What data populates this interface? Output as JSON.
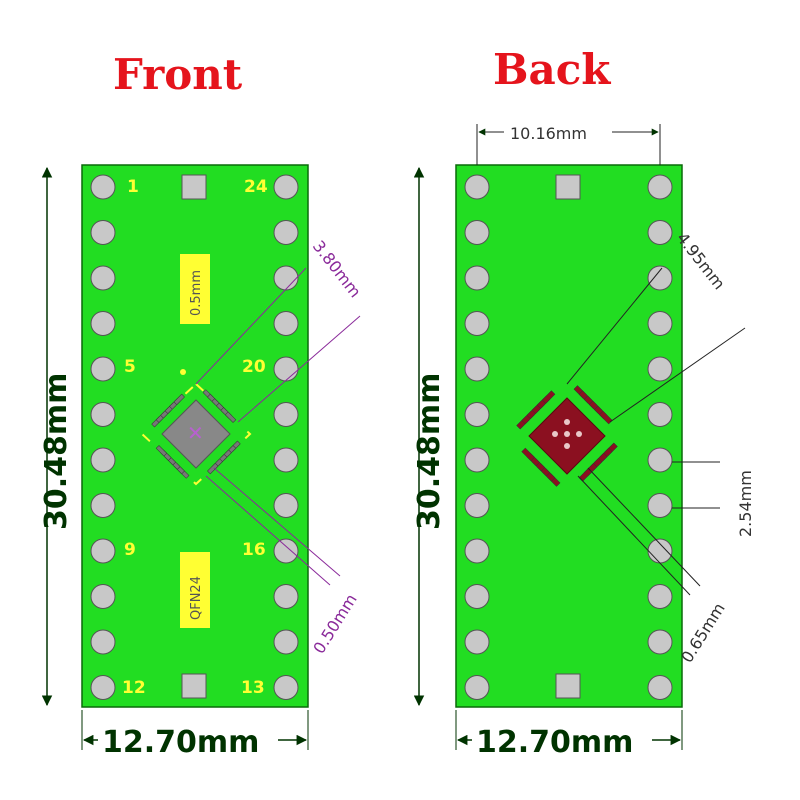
{
  "front": {
    "title": "Front",
    "pin_labels": {
      "p1": "1",
      "p5": "5",
      "p9": "9",
      "p12": "12",
      "p13": "13",
      "p16": "16",
      "p20": "20",
      "p24": "24"
    },
    "pitch_label": "0.5mm",
    "package_label": "QFN24",
    "dim_pad_span": "3.80mm",
    "dim_pad_pitch": "0.50mm",
    "dim_height": "30.48mm",
    "dim_width": "12.70mm"
  },
  "back": {
    "title": "Back",
    "dim_row_spacing": "10.16mm",
    "dim_pad_span": "4.95mm",
    "dim_pin_pitch": "2.54mm",
    "dim_pad_pitch": "0.65mm",
    "dim_height": "30.48mm",
    "dim_width": "12.70mm"
  },
  "colors": {
    "board": "#22dd22",
    "pad": "#c8c8c8",
    "pin_label": "#ffff33",
    "dimension_main": "#003300",
    "dimension_purple": "#8a2a9a",
    "title": "#e5141c",
    "back_chip": "#8b1020"
  }
}
